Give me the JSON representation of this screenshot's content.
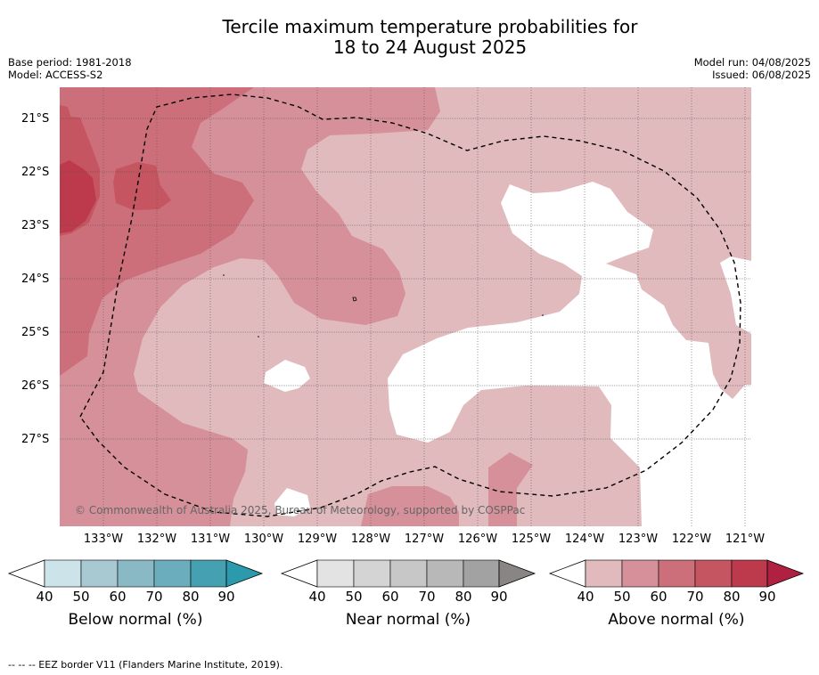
{
  "header": {
    "title_line1": "Tercile maximum temperature probabilities for",
    "title_line2": "18 to 24 August 2025",
    "base_period": "Base period: 1981-2018",
    "model": "Model: ACCESS-S2",
    "model_run": "Model run: 04/08/2025",
    "issued": "Issued: 06/08/2025"
  },
  "map": {
    "lat_labels": [
      "21°S",
      "22°S",
      "23°S",
      "24°S",
      "25°S",
      "26°S",
      "27°S"
    ],
    "lon_labels": [
      "133°W",
      "132°W",
      "131°W",
      "130°W",
      "129°W",
      "128°W",
      "127°W",
      "126°W",
      "125°W",
      "124°W",
      "123°W",
      "122°W",
      "121°W"
    ],
    "copyright": "© Commonwealth of Australia 2025, Bureau of Meteorology, supported by COSPPac",
    "colors": {
      "above_40": "#e0babd",
      "above_50": "#d6909a",
      "above_60": "#cd6f7a",
      "above_70": "#c55560",
      "above_80": "#bc3a4c",
      "eez_border": "#000000"
    }
  },
  "legends": [
    {
      "title": "Below normal (%)",
      "ticks": [
        "40",
        "50",
        "60",
        "70",
        "80",
        "90"
      ],
      "colors": [
        "#cce3ea",
        "#a8c9d1",
        "#8ab9c6",
        "#6cadbd",
        "#45a1b2",
        "#2a9aac"
      ]
    },
    {
      "title": "Near normal (%)",
      "ticks": [
        "40",
        "50",
        "60",
        "70",
        "80",
        "90"
      ],
      "colors": [
        "#e3e3e3",
        "#d4d4d4",
        "#c7c7c7",
        "#b8b8b8",
        "#a2a2a2",
        "#8a8585"
      ]
    },
    {
      "title": "Above normal (%)",
      "ticks": [
        "40",
        "50",
        "60",
        "70",
        "80",
        "90"
      ],
      "colors": [
        "#e0babd",
        "#d6909a",
        "#cd6f7a",
        "#c55560",
        "#bc3a4c",
        "#b02040"
      ]
    }
  ],
  "footnote": "-- -- -- EEZ border V11 (Flanders Marine Institute, 2019)."
}
